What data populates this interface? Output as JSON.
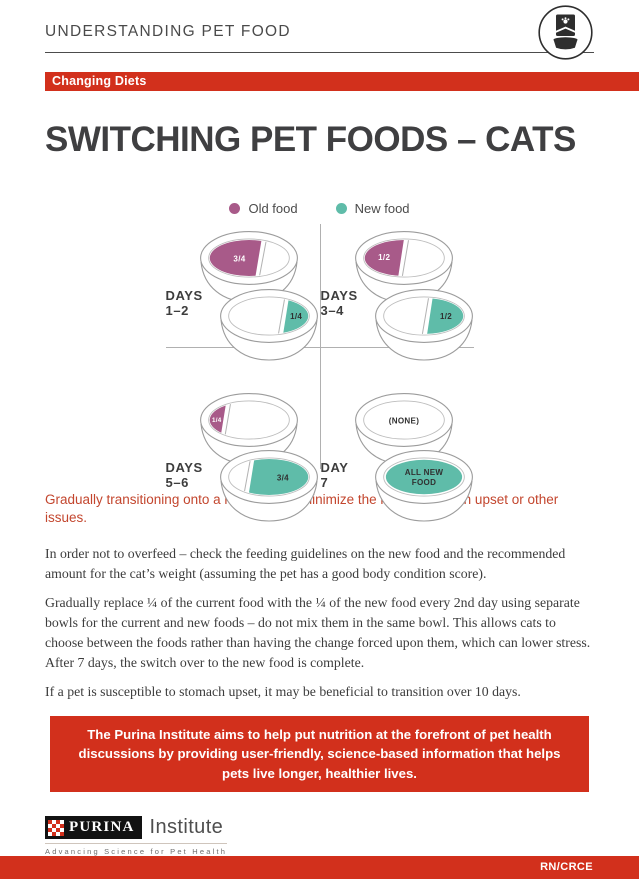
{
  "colors": {
    "red": "#D2301C",
    "highlight_red": "#C3462E",
    "old_food": "#A85A89",
    "new_food": "#5FBCA9",
    "title_dark": "#3F3F41"
  },
  "header": {
    "title": "UNDERSTANDING PET FOOD",
    "icon": "pet-food-bag-and-bowl"
  },
  "badge": "Changing Diets",
  "page_title": "SWITCHING PET FOODS – CATS",
  "legend": {
    "old": {
      "label": "Old food"
    },
    "new": {
      "label": "New food"
    }
  },
  "diagram": {
    "quadrants": [
      {
        "days": "DAYS",
        "range": "1–2",
        "top_bowl": {
          "food": "old",
          "portion": "threeq_left",
          "label": [
            "3/4"
          ]
        },
        "bottom_bowl": {
          "food": "new",
          "portion": "quarter_right",
          "label": [
            "1/4"
          ]
        }
      },
      {
        "days": "DAYS",
        "range": "3–4",
        "top_bowl": {
          "food": "old",
          "portion": "half_left",
          "label": [
            "1/2"
          ]
        },
        "bottom_bowl": {
          "food": "new",
          "portion": "half_right",
          "label": [
            "1/2"
          ]
        }
      },
      {
        "days": "DAYS",
        "range": "5–6",
        "top_bowl": {
          "food": "old",
          "portion": "quarter_left",
          "label": [
            "1/4"
          ]
        },
        "bottom_bowl": {
          "food": "new",
          "portion": "threeq_right",
          "label": [
            "3/4"
          ]
        }
      },
      {
        "days": "DAY",
        "range": "7",
        "top_bowl": {
          "food": "none",
          "portion": "none",
          "label": [
            "(NONE)"
          ]
        },
        "bottom_bowl": {
          "food": "new",
          "portion": "full",
          "label": [
            "ALL NEW",
            "FOOD"
          ]
        }
      }
    ]
  },
  "highlight": "Gradually transitioning onto a new diet will minimize the risk of stomach upset or other issues.",
  "paragraphs": [
    "In order not to overfeed – check the feeding guidelines on the new food and the recommended amount for the cat’s weight (assuming the pet has a good body condition score).",
    "Gradually replace ¼ of the current food with the ¼ of the new food every 2nd day using separate bowls for the current and new foods – do not mix them in the same bowl. This allows cats to choose between the foods rather than having the change forced upon them, which can lower stress. After 7 days, the switch over to the new food is complete.",
    "If a pet is susceptible to stomach upset, it may be beneficial to transition over 10 days."
  ],
  "footer_box": "The Purina Institute aims to help put nutrition at the forefront of pet health discussions by providing user-friendly, science-based information that helps pets live longer, healthier lives.",
  "logo": {
    "brand": "PURINA",
    "suffix": "Institute",
    "tagline": "Advancing Science for Pet Health"
  },
  "page_code": "RN/CRCE"
}
